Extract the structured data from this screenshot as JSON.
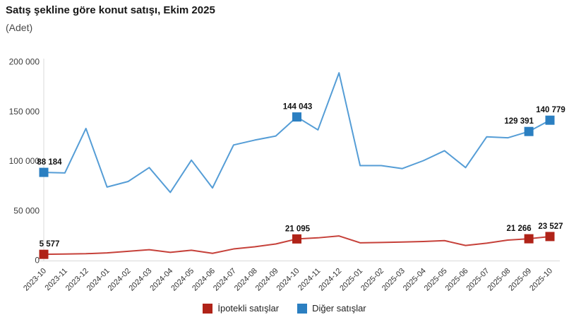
{
  "header": {
    "title": "Satış şekline göre konut satışı, Ekim 2025",
    "subtitle": "(Adet)"
  },
  "legend": {
    "items": [
      {
        "label": "İpotekli satışlar",
        "color": "#b02318"
      },
      {
        "label": "Diğer satışlar",
        "color": "#2b7fc1"
      }
    ]
  },
  "chart_data": {
    "type": "line",
    "title": "Satış şekline göre konut satışı, Ekim 2025",
    "subtitle": "(Adet)",
    "grid": false,
    "legend_position": "bottom",
    "ylim": [
      0,
      200000
    ],
    "yticks": [
      {
        "value": 0,
        "label": "0"
      },
      {
        "value": 50000,
        "label": "50 000"
      },
      {
        "value": 100000,
        "label": "100 000"
      },
      {
        "value": 150000,
        "label": "150 000"
      },
      {
        "value": 200000,
        "label": "200 000"
      }
    ],
    "x": [
      "2023-10",
      "2023-11",
      "2023-12",
      "2024-01",
      "2024-02",
      "2024-03",
      "2024-04",
      "2024-05",
      "2024-06",
      "2024-07",
      "2024-08",
      "2024-09",
      "2024-10",
      "2024-11",
      "2024-12",
      "2025-01",
      "2025-02",
      "2025-03",
      "2025-04",
      "2025-05",
      "2025-06",
      "2025-07",
      "2025-08",
      "2025-09",
      "2025-10"
    ],
    "series": [
      {
        "name": "İpotekli satışlar",
        "color": "#b02318",
        "line_color": "#c6413a",
        "values": [
          5577,
          5900,
          6200,
          7000,
          8600,
          10200,
          7600,
          9700,
          6600,
          11000,
          13200,
          16000,
          21095,
          22200,
          24100,
          17200,
          17500,
          18000,
          18500,
          19400,
          14500,
          16800,
          19900,
          21266,
          23527
        ],
        "marked_points": [
          {
            "x": "2023-10",
            "label": "5 577"
          },
          {
            "x": "2024-10",
            "label": "21 095"
          },
          {
            "x": "2025-09",
            "label": "21 266"
          },
          {
            "x": "2025-10",
            "label": "23 527"
          }
        ]
      },
      {
        "name": "Diğer satışlar",
        "color": "#2b7fc1",
        "line_color": "#559dd6",
        "values": [
          88184,
          87600,
          132400,
          73400,
          79000,
          93000,
          68000,
          100500,
          72500,
          115800,
          120700,
          124800,
          144043,
          131000,
          188500,
          95000,
          95000,
          92000,
          100000,
          110000,
          93000,
          124000,
          123000,
          129391,
          140779
        ],
        "marked_points": [
          {
            "x": "2023-10",
            "label": "88 184"
          },
          {
            "x": "2024-10",
            "label": "144 043"
          },
          {
            "x": "2025-09",
            "label": "129 391"
          },
          {
            "x": "2025-10",
            "label": "140 779"
          }
        ]
      }
    ]
  }
}
